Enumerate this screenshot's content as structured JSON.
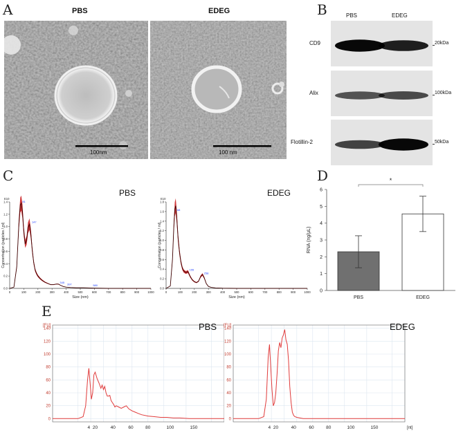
{
  "panel_letters": {
    "a": "A",
    "b": "B",
    "c": "C",
    "d": "D",
    "e": "E"
  },
  "panel_a": {
    "left_label": "PBS",
    "right_label": "EDEG",
    "scale_left": "100nm",
    "scale_right": "100 nm"
  },
  "panel_b": {
    "col_pbs": "PBS",
    "col_edeg": "EDEG",
    "rows": [
      {
        "protein": "CD9",
        "size": "20kDa",
        "pbs_intensity": 0.95,
        "edeg_intensity": 0.8
      },
      {
        "protein": "Alix",
        "size": "100kDa",
        "pbs_intensity": 0.45,
        "edeg_intensity": 0.5
      },
      {
        "protein": "Flotillin-2",
        "size": "50kDa",
        "pbs_intensity": 0.55,
        "edeg_intensity": 0.95
      }
    ]
  },
  "panel_c": {
    "left_title": "PBS",
    "right_title": "EDEG",
    "y_exponent": "E10",
    "ylabel": "Concentration (particles / ml)",
    "xlabel": "Size (nm)"
  },
  "panel_d": {
    "sig": "*"
  },
  "panel_e": {
    "left_title": "PBS",
    "right_title": "EDEG",
    "y_unit": "[FU]",
    "x_unit": "[nt]"
  },
  "chart_data": [
    {
      "type": "line",
      "id": "nta-pbs",
      "title": "PBS",
      "xlabel": "Size (nm)",
      "ylabel": "Concentration (particles / ml)",
      "y_multiplier": "E10",
      "xlim": [
        0,
        1000
      ],
      "ylim": [
        0,
        1.4
      ],
      "xticks": [
        0,
        100,
        200,
        300,
        400,
        500,
        600,
        700,
        800,
        900,
        1000
      ],
      "yticks": [
        0,
        0.2,
        0.4,
        0.6,
        0.8,
        1.0,
        1.2,
        1.4
      ],
      "peak_labels": [
        {
          "x": 80,
          "y": 1.38,
          "text": "81"
        },
        {
          "x": 147,
          "y": 1.05,
          "text": "147"
        },
        {
          "x": 345,
          "y": 0.07,
          "text": "345"
        },
        {
          "x": 397,
          "y": 0.04,
          "text": "397"
        },
        {
          "x": 580,
          "y": 0.02,
          "text": "580"
        }
      ],
      "x": [
        0,
        30,
        50,
        65,
        75,
        82,
        90,
        100,
        110,
        120,
        130,
        140,
        150,
        160,
        170,
        180,
        190,
        200,
        215,
        230,
        250,
        270,
        290,
        310,
        330,
        345,
        360,
        380,
        400,
        430,
        470,
        520,
        600,
        700,
        800,
        900,
        1000
      ],
      "y": [
        0,
        0.02,
        0.35,
        1.05,
        1.35,
        1.38,
        1.25,
        0.92,
        0.72,
        0.78,
        0.98,
        1.04,
        0.88,
        0.62,
        0.42,
        0.3,
        0.24,
        0.2,
        0.16,
        0.13,
        0.1,
        0.08,
        0.06,
        0.06,
        0.07,
        0.07,
        0.05,
        0.03,
        0.02,
        0.015,
        0.01,
        0.01,
        0.005,
        0,
        0,
        0,
        0
      ]
    },
    {
      "type": "line",
      "id": "nta-edeg",
      "title": "EDEG",
      "xlabel": "Size (nm)",
      "ylabel": "Concentration (particles / ml)",
      "y_multiplier": "E10",
      "xlim": [
        0,
        1000
      ],
      "ylim": [
        0,
        1.8
      ],
      "xticks": [
        0,
        100,
        200,
        300,
        400,
        500,
        600,
        700,
        800,
        900,
        1000
      ],
      "yticks": [
        0,
        0.2,
        0.4,
        0.6,
        0.8,
        1.0,
        1.2,
        1.4,
        1.6,
        1.8
      ],
      "peak_labels": [
        {
          "x": 68,
          "y": 1.6,
          "text": "68"
        },
        {
          "x": 155,
          "y": 0.35,
          "text": "155"
        },
        {
          "x": 258,
          "y": 0.28,
          "text": "258"
        }
      ],
      "x": [
        0,
        30,
        45,
        55,
        62,
        68,
        75,
        85,
        95,
        105,
        115,
        125,
        140,
        155,
        170,
        185,
        200,
        215,
        230,
        245,
        258,
        270,
        285,
        300,
        320,
        350,
        400,
        500,
        600,
        700,
        800,
        900,
        1000
      ],
      "y": [
        0,
        0.05,
        0.6,
        1.3,
        1.65,
        1.72,
        1.5,
        1.05,
        0.75,
        0.55,
        0.42,
        0.36,
        0.33,
        0.35,
        0.25,
        0.18,
        0.14,
        0.12,
        0.15,
        0.25,
        0.29,
        0.22,
        0.1,
        0.04,
        0.02,
        0.01,
        0.005,
        0,
        0,
        0,
        0,
        0,
        0
      ]
    },
    {
      "type": "bar",
      "id": "rna",
      "categories": [
        "PBS",
        "EDEG"
      ],
      "values": [
        2.3,
        4.55
      ],
      "errors": [
        0.95,
        1.05
      ],
      "colors": [
        "#707070",
        "#ffffff"
      ],
      "ylabel": "RNA (ng/μL)",
      "ylim": [
        0,
        6
      ],
      "yticks": [
        0,
        1,
        2,
        3,
        4,
        5,
        6
      ]
    },
    {
      "type": "line",
      "id": "bioanalyzer-pbs",
      "title": "PBS",
      "y_unit": "[FU]",
      "x_unit": "[nt]",
      "ylim": [
        -5,
        145
      ],
      "yticks": [
        0,
        20,
        40,
        60,
        80,
        100,
        120,
        140
      ],
      "xtick_labels": [
        "4",
        "20",
        "40",
        "60",
        "80",
        "100",
        "150"
      ],
      "x": [
        0,
        40,
        48,
        52,
        55,
        57,
        59,
        61,
        63,
        65,
        67,
        70,
        73,
        76,
        78,
        80,
        82,
        84,
        86,
        88,
        90,
        92,
        94,
        96,
        98,
        100,
        104,
        108,
        112,
        116,
        120,
        125,
        130,
        135,
        140,
        150,
        160,
        170,
        180,
        190,
        200,
        215,
        230,
        250,
        270
      ],
      "y": [
        0,
        0,
        3,
        20,
        60,
        78,
        55,
        30,
        40,
        68,
        72,
        62,
        55,
        47,
        52,
        45,
        50,
        40,
        35,
        35,
        36,
        28,
        25,
        22,
        18,
        20,
        18,
        16,
        18,
        20,
        15,
        12,
        10,
        8,
        6,
        4,
        3,
        2,
        2,
        1,
        1,
        0,
        0,
        0,
        0
      ]
    },
    {
      "type": "line",
      "id": "bioanalyzer-edeg",
      "title": "EDEG",
      "y_unit": "[FU]",
      "x_unit": "[nt]",
      "ylim": [
        -5,
        145
      ],
      "yticks": [
        0,
        20,
        40,
        60,
        80,
        100,
        120,
        140
      ],
      "xtick_labels": [
        "4",
        "20",
        "40",
        "60",
        "80",
        "100",
        "150"
      ],
      "x": [
        0,
        40,
        48,
        52,
        55,
        57,
        59,
        61,
        63,
        65,
        67,
        69,
        71,
        73,
        75,
        77,
        79,
        81,
        83,
        85,
        87,
        89,
        91,
        93,
        95,
        97,
        100,
        105,
        110,
        120,
        140,
        160,
        180,
        200,
        230,
        270
      ],
      "y": [
        0,
        0,
        3,
        30,
        95,
        115,
        80,
        45,
        20,
        25,
        40,
        70,
        105,
        118,
        110,
        125,
        130,
        138,
        122,
        115,
        90,
        50,
        25,
        10,
        5,
        3,
        2,
        1,
        0,
        0,
        0,
        0,
        0,
        0,
        0,
        0
      ]
    }
  ]
}
